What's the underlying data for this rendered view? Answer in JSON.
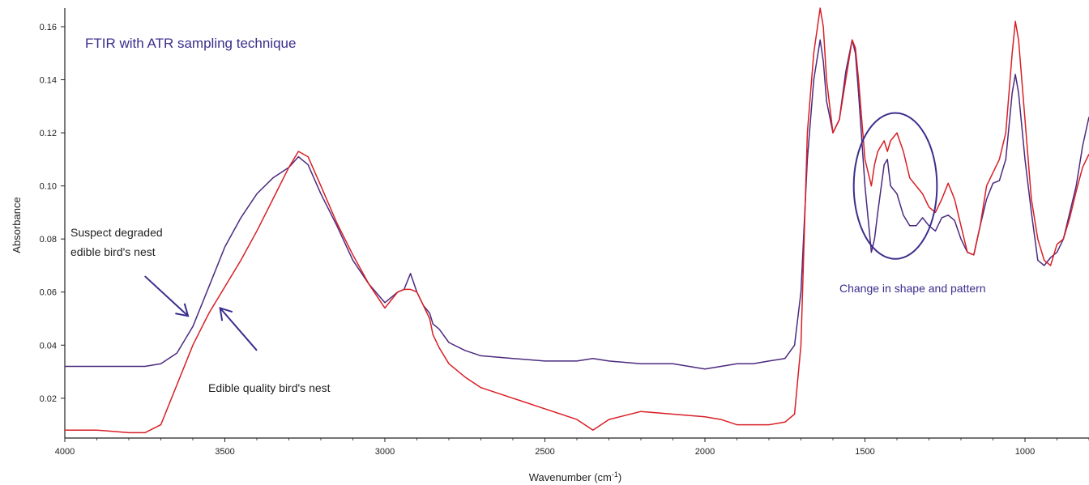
{
  "chart_data": {
    "type": "line",
    "title": "FTIR with ATR sampling technique",
    "xlabel": "Wavenumber (cm",
    "xlabel_sup": "-1",
    "xlabel_end": ")",
    "ylabel": "Absorbance",
    "xlim": [
      4000,
      800
    ],
    "ylim": [
      0.005,
      0.167
    ],
    "x_reversed": true,
    "x_ticks": [
      4000,
      3500,
      3000,
      2500,
      2000,
      1500,
      1000
    ],
    "x_tick_labels": [
      "4000",
      "3500",
      "3000",
      "2500",
      "2000",
      "1500",
      "1000"
    ],
    "y_ticks": [
      0.02,
      0.04,
      0.06,
      0.08,
      0.1,
      0.12,
      0.14,
      0.16
    ],
    "y_tick_labels": [
      "0.02",
      "0.04",
      "0.06",
      "0.08",
      "0.10",
      "0.12",
      "0.14",
      "0.16"
    ],
    "grid": false,
    "series": [
      {
        "name": "Suspect degraded edible bird's nest",
        "color": "#4b2a7e",
        "x": [
          4000,
          3900,
          3800,
          3750,
          3700,
          3650,
          3600,
          3550,
          3500,
          3450,
          3400,
          3350,
          3300,
          3270,
          3240,
          3200,
          3150,
          3100,
          3050,
          3000,
          2960,
          2940,
          2920,
          2900,
          2880,
          2860,
          2850,
          2830,
          2800,
          2750,
          2700,
          2600,
          2500,
          2400,
          2350,
          2300,
          2200,
          2100,
          2000,
          1950,
          1900,
          1850,
          1800,
          1750,
          1720,
          1700,
          1680,
          1660,
          1640,
          1630,
          1620,
          1600,
          1580,
          1560,
          1540,
          1530,
          1520,
          1500,
          1480,
          1470,
          1460,
          1440,
          1430,
          1420,
          1400,
          1380,
          1360,
          1340,
          1320,
          1300,
          1280,
          1260,
          1240,
          1220,
          1200,
          1180,
          1160,
          1140,
          1120,
          1100,
          1080,
          1060,
          1040,
          1030,
          1020,
          1000,
          980,
          960,
          940,
          920,
          900,
          880,
          860,
          840,
          820,
          800
        ],
        "y": [
          0.032,
          0.032,
          0.032,
          0.032,
          0.033,
          0.037,
          0.047,
          0.062,
          0.077,
          0.088,
          0.097,
          0.103,
          0.107,
          0.111,
          0.108,
          0.097,
          0.085,
          0.072,
          0.063,
          0.056,
          0.06,
          0.061,
          0.067,
          0.06,
          0.055,
          0.052,
          0.048,
          0.046,
          0.041,
          0.038,
          0.036,
          0.035,
          0.034,
          0.034,
          0.035,
          0.034,
          0.033,
          0.033,
          0.031,
          0.032,
          0.033,
          0.033,
          0.034,
          0.035,
          0.04,
          0.06,
          0.11,
          0.14,
          0.155,
          0.147,
          0.132,
          0.12,
          0.125,
          0.143,
          0.155,
          0.15,
          0.135,
          0.1,
          0.075,
          0.08,
          0.09,
          0.108,
          0.11,
          0.1,
          0.097,
          0.089,
          0.085,
          0.085,
          0.088,
          0.085,
          0.083,
          0.088,
          0.089,
          0.087,
          0.08,
          0.075,
          0.074,
          0.085,
          0.095,
          0.101,
          0.102,
          0.11,
          0.135,
          0.142,
          0.135,
          0.11,
          0.09,
          0.072,
          0.07,
          0.073,
          0.075,
          0.08,
          0.09,
          0.1,
          0.115,
          0.126
        ]
      },
      {
        "name": "Edible quality bird's nest",
        "color": "#d81f26",
        "x": [
          4000,
          3900,
          3800,
          3750,
          3700,
          3650,
          3600,
          3550,
          3500,
          3450,
          3400,
          3350,
          3300,
          3270,
          3240,
          3200,
          3150,
          3100,
          3050,
          3000,
          2960,
          2940,
          2920,
          2900,
          2880,
          2860,
          2850,
          2830,
          2800,
          2750,
          2700,
          2600,
          2500,
          2400,
          2350,
          2300,
          2200,
          2100,
          2000,
          1950,
          1900,
          1850,
          1800,
          1750,
          1720,
          1700,
          1680,
          1660,
          1640,
          1630,
          1620,
          1600,
          1580,
          1560,
          1540,
          1530,
          1520,
          1500,
          1480,
          1470,
          1460,
          1440,
          1430,
          1420,
          1400,
          1380,
          1360,
          1340,
          1320,
          1300,
          1280,
          1260,
          1240,
          1220,
          1200,
          1180,
          1160,
          1140,
          1120,
          1100,
          1080,
          1060,
          1040,
          1030,
          1020,
          1000,
          980,
          960,
          940,
          920,
          900,
          880,
          860,
          840,
          820,
          800
        ],
        "y": [
          0.008,
          0.008,
          0.007,
          0.007,
          0.01,
          0.025,
          0.04,
          0.052,
          0.062,
          0.072,
          0.083,
          0.095,
          0.107,
          0.113,
          0.111,
          0.1,
          0.086,
          0.074,
          0.063,
          0.054,
          0.06,
          0.061,
          0.061,
          0.06,
          0.055,
          0.05,
          0.044,
          0.039,
          0.033,
          0.028,
          0.024,
          0.02,
          0.016,
          0.012,
          0.008,
          0.012,
          0.015,
          0.014,
          0.013,
          0.012,
          0.01,
          0.01,
          0.01,
          0.011,
          0.014,
          0.04,
          0.12,
          0.15,
          0.167,
          0.16,
          0.14,
          0.12,
          0.125,
          0.14,
          0.155,
          0.152,
          0.14,
          0.11,
          0.1,
          0.108,
          0.113,
          0.117,
          0.113,
          0.117,
          0.12,
          0.113,
          0.103,
          0.1,
          0.097,
          0.092,
          0.09,
          0.095,
          0.101,
          0.095,
          0.085,
          0.075,
          0.074,
          0.085,
          0.1,
          0.105,
          0.11,
          0.12,
          0.15,
          0.162,
          0.155,
          0.125,
          0.095,
          0.08,
          0.072,
          0.07,
          0.078,
          0.08,
          0.088,
          0.098,
          0.107,
          0.112
        ]
      }
    ],
    "annotations": {
      "title": "FTIR with ATR sampling technique",
      "degraded_line1": "Suspect degraded",
      "degraded_line2": "edible bird's nest",
      "quality": "Edible quality bird's nest",
      "change": "Change in shape and pattern",
      "highlight_region": {
        "x_center": 1405,
        "y_center": 0.1,
        "x_half_width": 130,
        "y_half_height": 0.0275
      },
      "degraded_arrow": {
        "from": [
          3750,
          0.066
        ],
        "to": [
          3615,
          0.051
        ]
      },
      "quality_arrow": {
        "from": [
          3400,
          0.038
        ],
        "to": [
          3515,
          0.054
        ]
      }
    },
    "colors": {
      "annotation": "#3a2e8c",
      "axis": "#222222"
    }
  }
}
